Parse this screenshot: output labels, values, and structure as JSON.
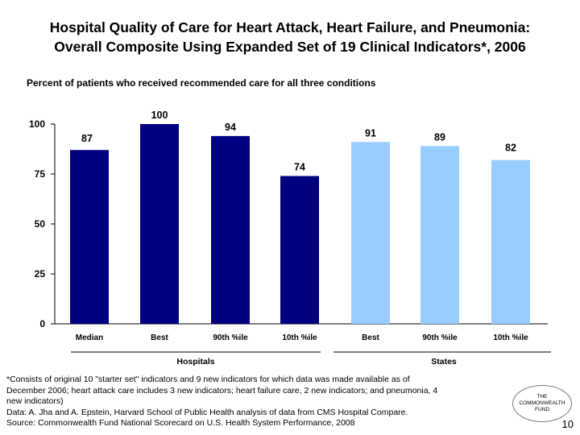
{
  "title_line1": "Hospital Quality of Care for Heart Attack, Heart Failure, and Pneumonia:",
  "title_line2": "Overall Composite Using Expanded Set of 19 Clinical Indicators*, 2006",
  "subtitle": "Percent of patients who received recommended care for all three conditions",
  "chart_data": {
    "type": "bar",
    "ylim": [
      0,
      100
    ],
    "yticks": [
      0,
      25,
      50,
      75,
      100
    ],
    "categories": [
      "Median",
      "Best",
      "90th %ile",
      "10th %ile",
      "Best",
      "90th %ile",
      "10th %ile"
    ],
    "values": [
      87,
      100,
      94,
      74,
      91,
      89,
      82
    ],
    "groups": [
      {
        "label": "Hospitals",
        "indices": [
          0,
          1,
          2,
          3
        ],
        "color": "#000080"
      },
      {
        "label": "States",
        "indices": [
          4,
          5,
          6
        ],
        "color": "#99ccff"
      }
    ]
  },
  "footnote_lines": [
    "*Consists of original 10 \"starter set\" indicators and 9 new indicators for which data was made available as of",
    "December 2006; heart attack care includes 3 new indicators; heart failure care, 2 new indicators; and pneumonia, 4",
    "new indicators)",
    "Data: A. Jha and A. Epstein, Harvard School of Public Health analysis of data from CMS Hospital Compare.",
    "Source: Commonwealth Fund National Scorecard on U.S. Health System Performance, 2008"
  ],
  "logo": {
    "line1": "THE",
    "line2": "COMMONWEALTH",
    "line3": "FUND"
  },
  "page_number": "10"
}
